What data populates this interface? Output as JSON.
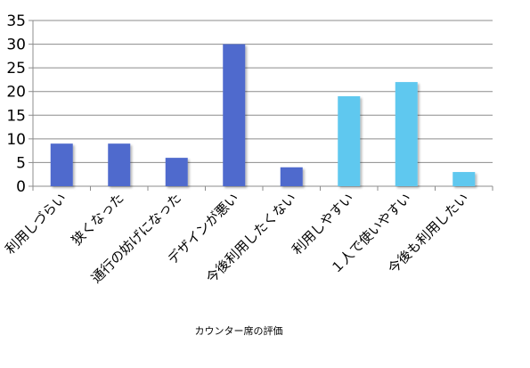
{
  "colors": {
    "negative": "#4f6bcd",
    "positive": "#5ec8ef",
    "grid": "#8c8c8c"
  },
  "chart_data": {
    "type": "bar",
    "title": "",
    "xlabel": "カウンター席の評価",
    "ylabel": "",
    "ylim": [
      0,
      35
    ],
    "yticks": [
      0,
      5,
      10,
      15,
      20,
      25,
      30,
      35
    ],
    "grid": true,
    "legend": "none",
    "categories": [
      "利用しづらい",
      "狭くなった",
      "通行の妨げになった",
      "デザインが悪い",
      "今後利用したくない",
      "利用しやすい",
      "１人で使いやすい",
      "今後も利用したい"
    ],
    "values": [
      9,
      9,
      6,
      30,
      4,
      19,
      22,
      3
    ],
    "bar_colors": [
      "negative",
      "negative",
      "negative",
      "negative",
      "negative",
      "positive",
      "positive",
      "positive"
    ]
  }
}
